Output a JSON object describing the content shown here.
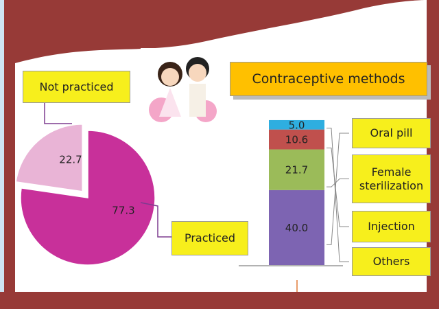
{
  "chart_data": [
    {
      "type": "pie",
      "categories": [
        "Not practiced",
        "Practiced"
      ],
      "values": [
        22.7,
        77.3
      ],
      "colors": [
        "#e9b4d6",
        "#c8309a"
      ]
    },
    {
      "type": "stacked-bar",
      "title": "Contraceptive methods",
      "series": [
        {
          "name": "Oral pill",
          "color": "#7d64b2",
          "values": [
            40.0
          ],
          "value_labels": [
            "40.0"
          ]
        },
        {
          "name": "Female sterilization",
          "color": "#9bbb59",
          "values": [
            21.7
          ],
          "value_labels": [
            "21.7"
          ]
        },
        {
          "name": "Injection",
          "color": "#c0504d",
          "values": [
            10.6
          ],
          "value_labels": [
            "10.6"
          ]
        },
        {
          "name": "Others",
          "color": "#2eaee0",
          "values": [
            5.0
          ],
          "value_labels": [
            "5.0"
          ]
        }
      ]
    }
  ]
}
